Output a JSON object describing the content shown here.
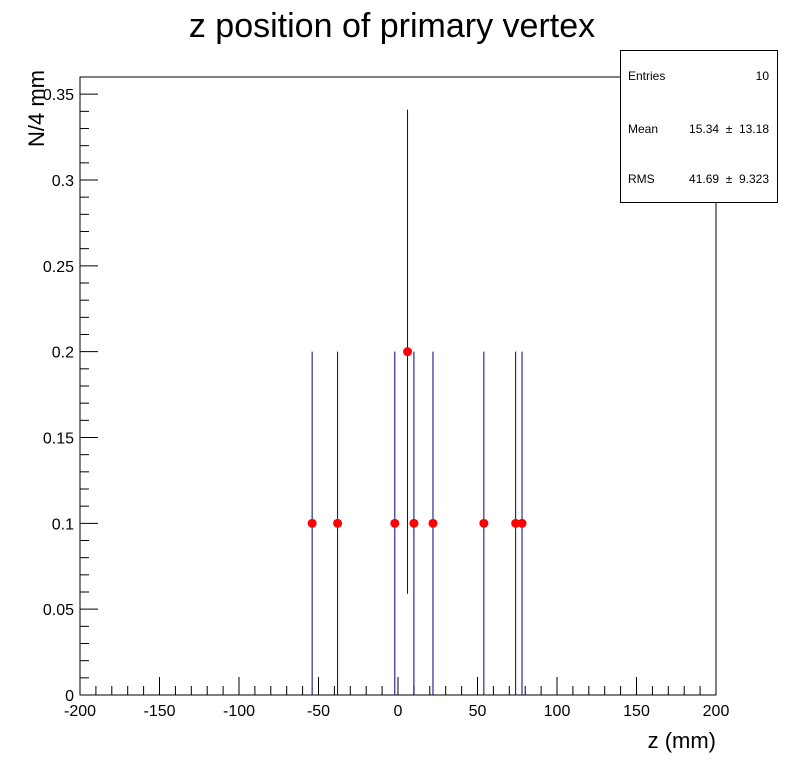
{
  "chart_data": {
    "type": "scatter",
    "title": "z position of primary vertex",
    "xlabel": "z (mm)",
    "ylabel": "N/4 mm",
    "xlim": [
      -200,
      200
    ],
    "ylim": [
      0,
      0.36
    ],
    "x_ticks": [
      -200,
      -150,
      -100,
      -50,
      0,
      50,
      100,
      150,
      200
    ],
    "x_tick_labels": [
      "-200",
      "-150",
      "-100",
      "-50",
      "0",
      "50",
      "100",
      "150",
      "200"
    ],
    "y_ticks": [
      0,
      0.05,
      0.1,
      0.15,
      0.2,
      0.25,
      0.3,
      0.35
    ],
    "y_tick_labels": [
      "0",
      "0.05",
      "0.1",
      "0.15",
      "0.2",
      "0.25",
      "0.3",
      "0.35"
    ],
    "grid": false,
    "marker_color": "#ff0000",
    "error_bar_color": "#00007f",
    "points": [
      {
        "x": -54,
        "y": 0.1,
        "y_err_low": 0.1,
        "y_err_high": 0.1
      },
      {
        "x": -38,
        "y": 0.1,
        "y_err_low": 0.1,
        "y_err_high": 0.1
      },
      {
        "x": -2,
        "y": 0.1,
        "y_err_low": 0.1,
        "y_err_high": 0.1
      },
      {
        "x": 6,
        "y": 0.2,
        "y_err_low": 0.141,
        "y_err_high": 0.141
      },
      {
        "x": 10,
        "y": 0.1,
        "y_err_low": 0.1,
        "y_err_high": 0.1
      },
      {
        "x": 22,
        "y": 0.1,
        "y_err_low": 0.1,
        "y_err_high": 0.1
      },
      {
        "x": 54,
        "y": 0.1,
        "y_err_low": 0.1,
        "y_err_high": 0.1
      },
      {
        "x": 74,
        "y": 0.1,
        "y_err_low": 0.1,
        "y_err_high": 0.1
      },
      {
        "x": 78,
        "y": 0.1,
        "y_err_low": 0.1,
        "y_err_high": 0.1
      }
    ]
  },
  "stats": {
    "entries_label": "Entries",
    "entries_value": "10",
    "mean_label": "Mean",
    "mean_value": "15.34  ±  13.18",
    "rms_label": "RMS",
    "rms_value": "41.69  ±  9.323"
  }
}
